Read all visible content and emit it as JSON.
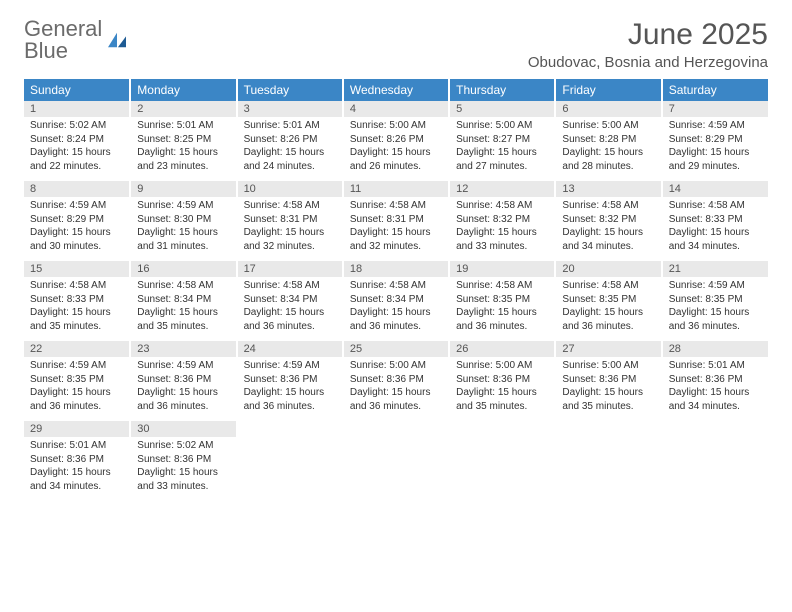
{
  "logo": {
    "line1": "General",
    "line2": "Blue"
  },
  "title": "June 2025",
  "location": "Obudovac, Bosnia and Herzegovina",
  "colors": {
    "header_bg": "#3b86c6",
    "header_text": "#ffffff",
    "daynum_bg": "#e9e9e9",
    "page_bg": "#ffffff",
    "text": "#333333",
    "logo_gray": "#6b6b6b",
    "logo_blue": "#3b86c6"
  },
  "day_headers": [
    "Sunday",
    "Monday",
    "Tuesday",
    "Wednesday",
    "Thursday",
    "Friday",
    "Saturday"
  ],
  "weeks": [
    [
      {
        "n": "1",
        "sr": "5:02 AM",
        "ss": "8:24 PM",
        "dl": "15 hours and 22 minutes."
      },
      {
        "n": "2",
        "sr": "5:01 AM",
        "ss": "8:25 PM",
        "dl": "15 hours and 23 minutes."
      },
      {
        "n": "3",
        "sr": "5:01 AM",
        "ss": "8:26 PM",
        "dl": "15 hours and 24 minutes."
      },
      {
        "n": "4",
        "sr": "5:00 AM",
        "ss": "8:26 PM",
        "dl": "15 hours and 26 minutes."
      },
      {
        "n": "5",
        "sr": "5:00 AM",
        "ss": "8:27 PM",
        "dl": "15 hours and 27 minutes."
      },
      {
        "n": "6",
        "sr": "5:00 AM",
        "ss": "8:28 PM",
        "dl": "15 hours and 28 minutes."
      },
      {
        "n": "7",
        "sr": "4:59 AM",
        "ss": "8:29 PM",
        "dl": "15 hours and 29 minutes."
      }
    ],
    [
      {
        "n": "8",
        "sr": "4:59 AM",
        "ss": "8:29 PM",
        "dl": "15 hours and 30 minutes."
      },
      {
        "n": "9",
        "sr": "4:59 AM",
        "ss": "8:30 PM",
        "dl": "15 hours and 31 minutes."
      },
      {
        "n": "10",
        "sr": "4:58 AM",
        "ss": "8:31 PM",
        "dl": "15 hours and 32 minutes."
      },
      {
        "n": "11",
        "sr": "4:58 AM",
        "ss": "8:31 PM",
        "dl": "15 hours and 32 minutes."
      },
      {
        "n": "12",
        "sr": "4:58 AM",
        "ss": "8:32 PM",
        "dl": "15 hours and 33 minutes."
      },
      {
        "n": "13",
        "sr": "4:58 AM",
        "ss": "8:32 PM",
        "dl": "15 hours and 34 minutes."
      },
      {
        "n": "14",
        "sr": "4:58 AM",
        "ss": "8:33 PM",
        "dl": "15 hours and 34 minutes."
      }
    ],
    [
      {
        "n": "15",
        "sr": "4:58 AM",
        "ss": "8:33 PM",
        "dl": "15 hours and 35 minutes."
      },
      {
        "n": "16",
        "sr": "4:58 AM",
        "ss": "8:34 PM",
        "dl": "15 hours and 35 minutes."
      },
      {
        "n": "17",
        "sr": "4:58 AM",
        "ss": "8:34 PM",
        "dl": "15 hours and 36 minutes."
      },
      {
        "n": "18",
        "sr": "4:58 AM",
        "ss": "8:34 PM",
        "dl": "15 hours and 36 minutes."
      },
      {
        "n": "19",
        "sr": "4:58 AM",
        "ss": "8:35 PM",
        "dl": "15 hours and 36 minutes."
      },
      {
        "n": "20",
        "sr": "4:58 AM",
        "ss": "8:35 PM",
        "dl": "15 hours and 36 minutes."
      },
      {
        "n": "21",
        "sr": "4:59 AM",
        "ss": "8:35 PM",
        "dl": "15 hours and 36 minutes."
      }
    ],
    [
      {
        "n": "22",
        "sr": "4:59 AM",
        "ss": "8:35 PM",
        "dl": "15 hours and 36 minutes."
      },
      {
        "n": "23",
        "sr": "4:59 AM",
        "ss": "8:36 PM",
        "dl": "15 hours and 36 minutes."
      },
      {
        "n": "24",
        "sr": "4:59 AM",
        "ss": "8:36 PM",
        "dl": "15 hours and 36 minutes."
      },
      {
        "n": "25",
        "sr": "5:00 AM",
        "ss": "8:36 PM",
        "dl": "15 hours and 36 minutes."
      },
      {
        "n": "26",
        "sr": "5:00 AM",
        "ss": "8:36 PM",
        "dl": "15 hours and 35 minutes."
      },
      {
        "n": "27",
        "sr": "5:00 AM",
        "ss": "8:36 PM",
        "dl": "15 hours and 35 minutes."
      },
      {
        "n": "28",
        "sr": "5:01 AM",
        "ss": "8:36 PM",
        "dl": "15 hours and 34 minutes."
      }
    ],
    [
      {
        "n": "29",
        "sr": "5:01 AM",
        "ss": "8:36 PM",
        "dl": "15 hours and 34 minutes."
      },
      {
        "n": "30",
        "sr": "5:02 AM",
        "ss": "8:36 PM",
        "dl": "15 hours and 33 minutes."
      },
      {
        "empty": true
      },
      {
        "empty": true
      },
      {
        "empty": true
      },
      {
        "empty": true
      },
      {
        "empty": true
      }
    ]
  ],
  "labels": {
    "sunrise": "Sunrise:",
    "sunset": "Sunset:",
    "daylight": "Daylight:"
  }
}
